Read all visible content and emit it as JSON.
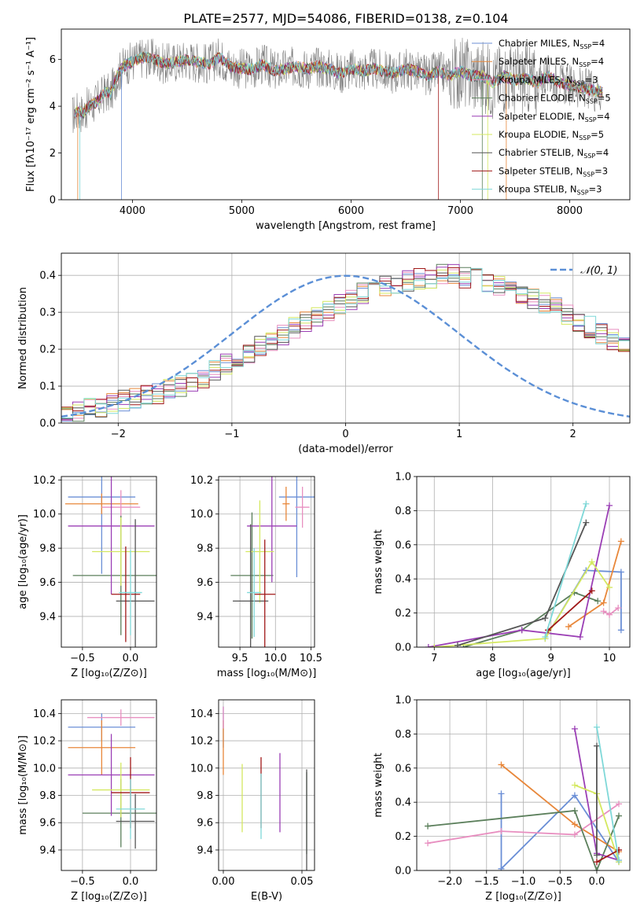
{
  "figure_title": "PLATE=2577, MJD=54086, FIBERID=0138, z=0.104",
  "model_colors": [
    "#6b8fd6",
    "#e8873a",
    "#e88fc0",
    "#5b7f5b",
    "#9b3fb5",
    "#d4e860",
    "#555555",
    "#a01818",
    "#7fd8d8"
  ],
  "chart_data": [
    {
      "id": "spectrum",
      "type": "line",
      "title": "PLATE=2577, MJD=54086, FIBERID=0138, z=0.104",
      "xlabel": "wavelength [Angstrom, rest frame]",
      "ylabel": "Flux [fλ10⁻¹⁷ erg cm⁻² s⁻¹ A⁻¹]",
      "xlim": [
        3350,
        8550
      ],
      "ylim": [
        0,
        7.3
      ],
      "xticks": [
        "4000",
        "5000",
        "6000",
        "7000",
        "8000"
      ],
      "yticks": [
        "0",
        "2",
        "4",
        "6"
      ],
      "grid": false,
      "legend_position": "top-right",
      "observed": {
        "color": "#808080",
        "x": [
          3450,
          3500,
          3550,
          3600,
          3650,
          3700,
          3750,
          3800,
          3850,
          3900,
          3950,
          4000,
          4100,
          4200,
          4300,
          4400,
          4500,
          4600,
          4700,
          4800,
          4900,
          5000,
          5100,
          5200,
          5300,
          5400,
          5500,
          5600,
          5700,
          5800,
          5900,
          6000,
          6100,
          6200,
          6300,
          6400,
          6500,
          6600,
          6700,
          6800,
          6900,
          7000,
          7100,
          7200,
          7300,
          7400,
          7500,
          7600,
          7700,
          7800,
          7900,
          8000,
          8100,
          8200,
          8300
        ],
        "y": [
          3.6,
          3.8,
          3.7,
          4.0,
          4.1,
          4.3,
          4.6,
          4.5,
          5.2,
          5.6,
          5.8,
          5.9,
          6.1,
          6.0,
          5.8,
          5.9,
          6.0,
          5.9,
          5.8,
          6.1,
          5.7,
          5.6,
          5.6,
          5.8,
          5.5,
          5.6,
          5.7,
          5.6,
          5.7,
          5.6,
          5.4,
          5.6,
          5.5,
          5.6,
          5.5,
          5.4,
          5.6,
          5.5,
          5.3,
          5.5,
          5.3,
          5.5,
          5.3,
          5.3,
          5.0,
          5.3,
          5.1,
          5.2,
          5.0,
          5.3,
          5.0,
          4.9,
          4.8,
          4.7,
          4.6
        ]
      },
      "models": [
        {
          "name": "Chabrier MILES, N_SSP=4",
          "label": "Chabrier MILES, N",
          "sub": "SSP",
          "value": "=4"
        },
        {
          "name": "Salpeter MILES, N_SSP=4",
          "label": "Salpeter MILES, N",
          "sub": "SSP",
          "value": "=4"
        },
        {
          "name": "Kroupa MILES, N_SSP=3",
          "label": "Kroupa MILES, N",
          "sub": "SSP",
          "value": "=3"
        },
        {
          "name": "Chabrier ELODIE, N_SSP=5",
          "label": "Chabrier ELODIE, N",
          "sub": "SSP",
          "value": "=5"
        },
        {
          "name": "Salpeter ELODIE, N_SSP=4",
          "label": "Salpeter ELODIE, N",
          "sub": "SSP",
          "value": "=4"
        },
        {
          "name": "Kroupa ELODIE, N_SSP=5",
          "label": "Kroupa ELODIE, N",
          "sub": "SSP",
          "value": "=5"
        },
        {
          "name": "Chabrier STELIB, N_SSP=4",
          "label": "Chabrier STELIB, N",
          "sub": "SSP",
          "value": "=4"
        },
        {
          "name": "Salpeter STELIB, N_SSP=3",
          "label": "Salpeter STELIB, N",
          "sub": "SSP",
          "value": "=3"
        },
        {
          "name": "Kroupa STELIB, N_SSP=3",
          "label": "Kroupa STELIB, N",
          "sub": "SSP",
          "value": "=3"
        }
      ]
    },
    {
      "id": "residual-histogram",
      "type": "step",
      "xlabel": "(data-model)/error",
      "ylabel": "Normed distribution",
      "xlim": [
        -2.5,
        2.5
      ],
      "ylim": [
        0,
        0.46
      ],
      "xticks": [
        "−2",
        "−1",
        "0",
        "1",
        "2"
      ],
      "yticks": [
        "0.0",
        "0.1",
        "0.2",
        "0.3",
        "0.4"
      ],
      "grid": true,
      "legend_position": "top-right",
      "bin_width": 0.1,
      "x_start": -2.5,
      "reference": {
        "name": "N(0,1)",
        "label": "𝒩(0, 1)",
        "color": "#5b8fd6",
        "mu": 0,
        "sigma": 1
      },
      "series_bins": [
        0.025,
        0.03,
        0.04,
        0.045,
        0.05,
        0.06,
        0.065,
        0.075,
        0.08,
        0.09,
        0.1,
        0.11,
        0.125,
        0.14,
        0.16,
        0.175,
        0.19,
        0.21,
        0.22,
        0.24,
        0.26,
        0.275,
        0.29,
        0.305,
        0.32,
        0.335,
        0.35,
        0.36,
        0.37,
        0.38,
        0.385,
        0.39,
        0.395,
        0.4,
        0.4,
        0.395,
        0.39,
        0.385,
        0.375,
        0.365,
        0.35,
        0.34,
        0.325,
        0.31,
        0.295,
        0.275,
        0.26,
        0.24,
        0.225,
        0.205,
        0.19,
        0.17,
        0.155,
        0.14,
        0.125,
        0.11,
        0.095,
        0.085,
        0.075,
        0.065,
        0.055,
        0.05,
        0.045,
        0.04,
        0.035,
        0.03,
        0.028,
        0.025,
        0.022,
        0.02
      ]
    },
    {
      "id": "age-vs-Z",
      "type": "errorbar",
      "xlabel": "Z [log₁₀(Z/Z⊙)]",
      "ylabel": "age  [log₁₀(age/yr)]",
      "xlim": [
        -0.72,
        0.27
      ],
      "ylim": [
        9.22,
        10.22
      ],
      "xticks": [
        "−0.5",
        "0.0"
      ],
      "yticks": [
        "9.4",
        "9.6",
        "9.8",
        "10.0",
        "10.2"
      ],
      "grid": true,
      "points": [
        {
          "x": -0.3,
          "y": 10.1,
          "xerr": 0.35,
          "yerr": 0.45
        },
        {
          "x": -0.3,
          "y": 10.06,
          "xerr": 0.38,
          "yerr": 0.06
        },
        {
          "x": -0.1,
          "y": 10.04,
          "xerr": 0.2,
          "yerr": 0.1
        },
        {
          "x": -0.1,
          "y": 9.64,
          "xerr": 0.5,
          "yerr": 0.35
        },
        {
          "x": -0.2,
          "y": 9.93,
          "xerr": 0.45,
          "yerr": 0.4
        },
        {
          "x": -0.1,
          "y": 9.78,
          "xerr": 0.3,
          "yerr": 0.2
        },
        {
          "x": 0.05,
          "y": 9.49,
          "xerr": 0.2,
          "yerr": 0.48
        },
        {
          "x": -0.05,
          "y": 9.53,
          "xerr": 0.15,
          "yerr": 0.28
        },
        {
          "x": 0.0,
          "y": 9.54,
          "xerr": 0.12,
          "yerr": 0.25
        }
      ]
    },
    {
      "id": "age-vs-mass",
      "type": "errorbar",
      "xlabel": "mass [log₁₀(M/M⊙)]",
      "ylabel": "",
      "xlim": [
        9.2,
        10.55
      ],
      "ylim": [
        9.22,
        10.22
      ],
      "xticks": [
        "9.5",
        "10.0",
        "10.5"
      ],
      "yticks": [
        "9.4",
        "9.6",
        "9.8",
        "10.0",
        "10.2"
      ],
      "grid": true,
      "points": [
        {
          "x": 10.3,
          "y": 10.1,
          "xerr": 0.25,
          "yerr": 0.47
        },
        {
          "x": 10.15,
          "y": 10.06,
          "xerr": 0.05,
          "yerr": 0.1
        },
        {
          "x": 10.38,
          "y": 10.04,
          "xerr": 0.1,
          "yerr": 0.12
        },
        {
          "x": 9.67,
          "y": 9.64,
          "xerr": 0.3,
          "yerr": 0.37
        },
        {
          "x": 9.95,
          "y": 9.93,
          "xerr": 0.35,
          "yerr": 0.33
        },
        {
          "x": 9.78,
          "y": 9.78,
          "xerr": 0.2,
          "yerr": 0.3
        },
        {
          "x": 9.65,
          "y": 9.49,
          "xerr": 0.25,
          "yerr": 0.45
        },
        {
          "x": 9.85,
          "y": 9.53,
          "xerr": 0.15,
          "yerr": 0.32
        },
        {
          "x": 9.7,
          "y": 9.54,
          "xerr": 0.1,
          "yerr": 0.26
        }
      ]
    },
    {
      "id": "mass-weight-vs-age",
      "type": "line",
      "xlabel": "age  [log₁₀(age/yr)]",
      "ylabel": "mass weight",
      "xlim": [
        6.7,
        10.35
      ],
      "ylim": [
        0,
        1
      ],
      "xticks": [
        "7",
        "8",
        "9",
        "10"
      ],
      "yticks": [
        "0.0",
        "0.2",
        "0.4",
        "0.6",
        "0.8",
        "1.0"
      ],
      "grid": true,
      "series": [
        {
          "x": [
            8.9,
            9.6,
            10.2,
            10.2
          ],
          "y": [
            0.05,
            0.45,
            0.44,
            0.1
          ]
        },
        {
          "x": [
            9.3,
            9.9,
            10.2
          ],
          "y": [
            0.12,
            0.26,
            0.62
          ]
        },
        {
          "x": [
            9.9,
            10.0,
            10.15
          ],
          "y": [
            0.21,
            0.19,
            0.23
          ]
        },
        {
          "x": [
            7.5,
            8.5,
            9.4,
            9.8
          ],
          "y": [
            0.0,
            0.1,
            0.32,
            0.27
          ]
        },
        {
          "x": [
            6.9,
            8.5,
            9.5,
            10.0
          ],
          "y": [
            0.0,
            0.1,
            0.06,
            0.83
          ]
        },
        {
          "x": [
            7.0,
            8.9,
            9.7,
            10.0
          ],
          "y": [
            0.0,
            0.05,
            0.5,
            0.35
          ]
        },
        {
          "x": [
            7.4,
            8.9,
            9.6
          ],
          "y": [
            0.01,
            0.17,
            0.73
          ]
        },
        {
          "x": [
            8.95,
            9.7
          ],
          "y": [
            0.1,
            0.33
          ]
        },
        {
          "x": [
            8.9,
            9.6
          ],
          "y": [
            0.06,
            0.84
          ]
        }
      ]
    },
    {
      "id": "mass-vs-Z",
      "type": "errorbar",
      "xlabel": "Z [log₁₀(Z/Z⊙)]",
      "ylabel": "mass [log₁₀(M/M⊙)]",
      "xlim": [
        -0.72,
        0.27
      ],
      "ylim": [
        9.25,
        10.5
      ],
      "xticks": [
        "−0.5",
        "0.0"
      ],
      "yticks": [
        "9.4",
        "9.6",
        "9.8",
        "10.0",
        "10.2",
        "10.4"
      ],
      "grid": true,
      "points": [
        {
          "x": -0.3,
          "y": 10.3,
          "xerr": 0.35,
          "yerr": 0.1
        },
        {
          "x": -0.3,
          "y": 10.15,
          "xerr": 0.35,
          "yerr": 0.2
        },
        {
          "x": -0.1,
          "y": 10.37,
          "xerr": 0.35,
          "yerr": 0.06
        },
        {
          "x": -0.1,
          "y": 9.67,
          "xerr": 0.4,
          "yerr": 0.25
        },
        {
          "x": -0.2,
          "y": 9.95,
          "xerr": 0.45,
          "yerr": 0.3
        },
        {
          "x": -0.1,
          "y": 9.84,
          "xerr": 0.3,
          "yerr": 0.2
        },
        {
          "x": 0.05,
          "y": 9.61,
          "xerr": 0.2,
          "yerr": 0.2
        },
        {
          "x": 0.0,
          "y": 9.82,
          "xerr": 0.2,
          "yerr": 0.26
        },
        {
          "x": 0.0,
          "y": 9.7,
          "xerr": 0.15,
          "yerr": 0.22
        }
      ]
    },
    {
      "id": "mass-vs-ebv",
      "type": "errorbar",
      "xlabel": "E(B-V)",
      "ylabel": "",
      "xlim": [
        -0.003,
        0.058
      ],
      "ylim": [
        9.25,
        10.5
      ],
      "xticks": [
        "0.00",
        "0.05"
      ],
      "yticks": [
        "9.4",
        "9.6",
        "9.8",
        "10.0",
        "10.2",
        "10.4"
      ],
      "grid": true,
      "points": [
        {
          "x": 0.0,
          "y": 10.3,
          "xerr": 0,
          "yerr": 0.15
        },
        {
          "x": 0.0,
          "y": 10.15,
          "xerr": 0,
          "yerr": 0.2
        },
        {
          "x": 0.0,
          "y": 10.37,
          "xerr": 0,
          "yerr": 0.08
        },
        {
          "x": 0.053,
          "y": 9.67,
          "xerr": 0,
          "yerr": 0.3
        },
        {
          "x": 0.036,
          "y": 9.82,
          "xerr": 0,
          "yerr": 0.29
        },
        {
          "x": 0.012,
          "y": 9.78,
          "xerr": 0,
          "yerr": 0.25
        },
        {
          "x": 0.053,
          "y": 9.61,
          "xerr": 0,
          "yerr": 0.38
        },
        {
          "x": 0.024,
          "y": 9.82,
          "xerr": 0,
          "yerr": 0.26
        },
        {
          "x": 0.024,
          "y": 9.72,
          "xerr": 0,
          "yerr": 0.24
        }
      ]
    },
    {
      "id": "mass-weight-vs-Z",
      "type": "line",
      "xlabel": "Z [log₁₀(Z/Z⊙)]",
      "ylabel": "mass weight",
      "xlim": [
        -2.45,
        0.45
      ],
      "ylim": [
        0,
        1
      ],
      "xticks": [
        "−2.0",
        "−1.5",
        "−1.0",
        "−0.5",
        "0.0"
      ],
      "yticks": [
        "0.0",
        "0.2",
        "0.4",
        "0.6",
        "0.8",
        "1.0"
      ],
      "grid": true,
      "series": [
        {
          "x": [
            -1.3,
            -1.3,
            -0.3,
            0.3
          ],
          "y": [
            0.45,
            0.01,
            0.44,
            0.05
          ]
        },
        {
          "x": [
            -1.3,
            -0.3,
            0.3
          ],
          "y": [
            0.62,
            0.27,
            0.11
          ]
        },
        {
          "x": [
            -2.3,
            -1.3,
            -0.3,
            0.3
          ],
          "y": [
            0.16,
            0.23,
            0.21,
            0.39
          ]
        },
        {
          "x": [
            -2.3,
            -0.3,
            0.0,
            0.3
          ],
          "y": [
            0.26,
            0.35,
            0.0,
            0.32
          ]
        },
        {
          "x": [
            -0.3,
            0.0,
            0.3
          ],
          "y": [
            0.83,
            0.1,
            0.06
          ]
        },
        {
          "x": [
            -0.3,
            0.0,
            0.3
          ],
          "y": [
            0.5,
            0.45,
            0.05
          ]
        },
        {
          "x": [
            0.0,
            0.0
          ],
          "y": [
            0.73,
            0.09
          ]
        },
        {
          "x": [
            0.0,
            0.3
          ],
          "y": [
            0.05,
            0.12
          ]
        },
        {
          "x": [
            0.0,
            0.3
          ],
          "y": [
            0.84,
            0.06
          ]
        }
      ]
    }
  ]
}
